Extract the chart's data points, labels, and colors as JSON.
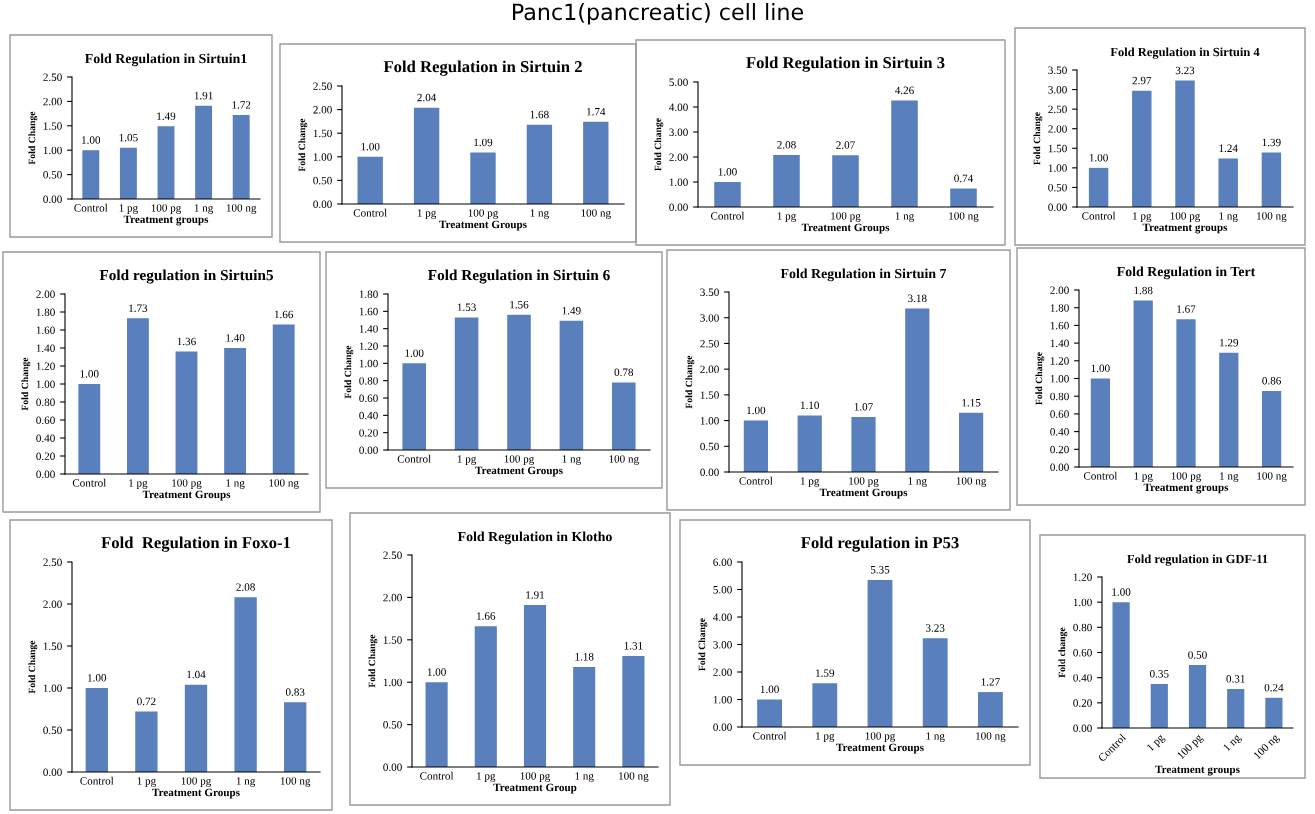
{
  "chart_data": [
    {
      "type": "other",
      "title": "Panc1(pancreatic) cell line"
    },
    {
      "type": "bar",
      "title": "Fold Regulation in Sirtuin1",
      "xlabel": "Treatment groups",
      "ylabel": "Fold Change",
      "categories": [
        "Control",
        "1 pg",
        "100 pg",
        "1 ng",
        "100 ng"
      ],
      "values": [
        1.0,
        1.05,
        1.49,
        1.91,
        1.72
      ],
      "value_labels": [
        "1.00",
        "1.05",
        "1.49",
        "1.91",
        "1.72"
      ],
      "color": "#5a7fbd",
      "ylim": [
        0,
        2.5
      ],
      "yticks": [
        {
          "value": 0,
          "label": "0.00"
        },
        {
          "value": 0.5,
          "label": "0.50"
        },
        {
          "value": 1,
          "label": "1.00"
        },
        {
          "value": 1.5,
          "label": "1.50"
        },
        {
          "value": 2,
          "label": "2.00"
        },
        {
          "value": 2.5,
          "label": "2.50"
        }
      ],
      "grid": false,
      "legend": false
    },
    {
      "type": "bar",
      "title": "Fold Regulation in Sirtuin 2",
      "xlabel": "Treatment Groups",
      "ylabel": "Fold Change",
      "categories": [
        "Control",
        "1 pg",
        "100 pg",
        "1 ng",
        "100 ng"
      ],
      "values": [
        1.0,
        2.04,
        1.09,
        1.68,
        1.74
      ],
      "value_labels": [
        "1.00",
        "2.04",
        "1.09",
        "1.68",
        "1.74"
      ],
      "color": "#5a7fbd",
      "ylim": [
        0,
        2.5
      ],
      "yticks": [
        {
          "value": 0,
          "label": "0.00"
        },
        {
          "value": 0.5,
          "label": "0.50"
        },
        {
          "value": 1,
          "label": "1.00"
        },
        {
          "value": 1.5,
          "label": "1.50"
        },
        {
          "value": 2,
          "label": "2.00"
        },
        {
          "value": 2.5,
          "label": "2.50"
        }
      ],
      "grid": false,
      "legend": false
    },
    {
      "type": "bar",
      "title": "Fold Regulation in Sirtuin 3",
      "xlabel": "Treatment Groups",
      "ylabel": "Fold Change",
      "categories": [
        "Control",
        "1 pg",
        "100 pg",
        "1 ng",
        "100 ng"
      ],
      "values": [
        1.0,
        2.08,
        2.07,
        4.26,
        0.74
      ],
      "value_labels": [
        "1.00",
        "2.08",
        "2.07",
        "4.26",
        "0.74"
      ],
      "color": "#5a7fbd",
      "ylim": [
        0,
        5
      ],
      "yticks": [
        {
          "value": 0,
          "label": "0.00"
        },
        {
          "value": 1,
          "label": "1.00"
        },
        {
          "value": 2,
          "label": "2.00"
        },
        {
          "value": 3,
          "label": "3.00"
        },
        {
          "value": 4,
          "label": "4.00"
        },
        {
          "value": 5,
          "label": "5.00"
        }
      ],
      "grid": false,
      "legend": false
    },
    {
      "type": "bar",
      "title": "Fold Regulation in Sirtuin 4",
      "xlabel": "Treatment groups",
      "ylabel": "Fold Change",
      "categories": [
        "Control",
        "1 pg",
        "100 pg",
        "1 ng",
        "100 ng"
      ],
      "values": [
        1.0,
        2.97,
        3.23,
        1.24,
        1.39
      ],
      "value_labels": [
        "1.00",
        "2.97",
        "3.23",
        "1.24",
        "1.39"
      ],
      "color": "#5a7fbd",
      "ylim": [
        0,
        3.5
      ],
      "yticks": [
        {
          "value": 0,
          "label": "0.00"
        },
        {
          "value": 0.5,
          "label": "0.50"
        },
        {
          "value": 1,
          "label": "1.00"
        },
        {
          "value": 1.5,
          "label": "1.50"
        },
        {
          "value": 2,
          "label": "2.00"
        },
        {
          "value": 2.5,
          "label": "2.50"
        },
        {
          "value": 3,
          "label": "3.00"
        },
        {
          "value": 3.5,
          "label": "3.50"
        }
      ],
      "grid": false,
      "legend": false
    },
    {
      "type": "bar",
      "title": "Fold regulation in Sirtuin5",
      "xlabel": "Treatment Groups",
      "ylabel": "Fold Change",
      "categories": [
        "Control",
        "1 pg",
        "100 pg",
        "1 ng",
        "100 ng"
      ],
      "values": [
        1.0,
        1.73,
        1.36,
        1.4,
        1.66
      ],
      "value_labels": [
        "1.00",
        "1.73",
        "1.36",
        "1.40",
        "1.66"
      ],
      "color": "#5a7fbd",
      "ylim": [
        0,
        2
      ],
      "yticks": [
        {
          "value": 0,
          "label": "0.00"
        },
        {
          "value": 0.2,
          "label": "0.20"
        },
        {
          "value": 0.4,
          "label": "0.40"
        },
        {
          "value": 0.6,
          "label": "0.60"
        },
        {
          "value": 0.8,
          "label": "0.80"
        },
        {
          "value": 1,
          "label": "1.00"
        },
        {
          "value": 1.2,
          "label": "1.20"
        },
        {
          "value": 1.4,
          "label": "1.40"
        },
        {
          "value": 1.6,
          "label": "1.60"
        },
        {
          "value": 1.8,
          "label": "1.80"
        },
        {
          "value": 2,
          "label": "2.00"
        }
      ],
      "grid": false,
      "legend": false
    },
    {
      "type": "bar",
      "title": "Fold Regulation in Sirtuin 6",
      "xlabel": "Treatment Groups",
      "ylabel": "Fold Change",
      "categories": [
        "Control",
        "1 pg",
        "100 pg",
        "1 ng",
        "100 ng"
      ],
      "values": [
        1.0,
        1.53,
        1.56,
        1.49,
        0.78
      ],
      "value_labels": [
        "1.00",
        "1.53",
        "1.56",
        "1.49",
        "0.78"
      ],
      "color": "#5a7fbd",
      "ylim": [
        0,
        1.8
      ],
      "yticks": [
        {
          "value": 0,
          "label": "0.00"
        },
        {
          "value": 0.2,
          "label": "0.20"
        },
        {
          "value": 0.4,
          "label": "0.40"
        },
        {
          "value": 0.6,
          "label": "0.60"
        },
        {
          "value": 0.8,
          "label": "0.80"
        },
        {
          "value": 1,
          "label": "1.00"
        },
        {
          "value": 1.2,
          "label": "1.20"
        },
        {
          "value": 1.4,
          "label": "1.40"
        },
        {
          "value": 1.6,
          "label": "1.60"
        },
        {
          "value": 1.8,
          "label": "1.80"
        }
      ],
      "grid": false,
      "legend": false
    },
    {
      "type": "bar",
      "title": "Fold Regulation in Sirtuin 7",
      "xlabel": "Treatment Groups",
      "ylabel": "Fold Change",
      "categories": [
        "Control",
        "1 pg",
        "100 pg",
        "1 ng",
        "100 ng"
      ],
      "values": [
        1.0,
        1.1,
        1.07,
        3.18,
        1.15
      ],
      "value_labels": [
        "1.00",
        "1.10",
        "1.07",
        "3.18",
        "1.15"
      ],
      "color": "#5a7fbd",
      "ylim": [
        0,
        3.5
      ],
      "yticks": [
        {
          "value": 0,
          "label": "0.00"
        },
        {
          "value": 0.5,
          "label": "0.50"
        },
        {
          "value": 1,
          "label": "1.00"
        },
        {
          "value": 1.5,
          "label": "1.50"
        },
        {
          "value": 2,
          "label": "2.00"
        },
        {
          "value": 2.5,
          "label": "2.50"
        },
        {
          "value": 3,
          "label": "3.00"
        },
        {
          "value": 3.5,
          "label": "3.50"
        }
      ],
      "grid": false,
      "legend": false
    },
    {
      "type": "bar",
      "title": "Fold Regulation in Tert",
      "xlabel": "Treatment groups",
      "ylabel": "Fold Change",
      "categories": [
        "Control",
        "1 pg",
        "100 pg",
        "1 ng",
        "100 ng"
      ],
      "values": [
        1.0,
        1.88,
        1.67,
        1.29,
        0.86
      ],
      "value_labels": [
        "1.00",
        "1.88",
        "1.67",
        "1.29",
        "0.86"
      ],
      "color": "#5a7fbd",
      "ylim": [
        0,
        2
      ],
      "yticks": [
        {
          "value": 0,
          "label": "0.00"
        },
        {
          "value": 0.2,
          "label": "0.20"
        },
        {
          "value": 0.4,
          "label": "0.40"
        },
        {
          "value": 0.6,
          "label": "0.60"
        },
        {
          "value": 0.8,
          "label": "0.80"
        },
        {
          "value": 1,
          "label": "1.00"
        },
        {
          "value": 1.2,
          "label": "1.20"
        },
        {
          "value": 1.4,
          "label": "1.40"
        },
        {
          "value": 1.6,
          "label": "1.60"
        },
        {
          "value": 1.8,
          "label": "1.80"
        },
        {
          "value": 2,
          "label": "2.00"
        }
      ],
      "grid": false,
      "legend": false
    },
    {
      "type": "bar",
      "title": "Fold  Regulation in Foxo-1",
      "xlabel": "Treatment Groups",
      "ylabel": "Fold Change",
      "categories": [
        "Control",
        "1 pg",
        "100 pg",
        "1 ng",
        "100 ng"
      ],
      "values": [
        1.0,
        0.72,
        1.04,
        2.08,
        0.83
      ],
      "value_labels": [
        "1.00",
        "0.72",
        "1.04",
        "2.08",
        "0.83"
      ],
      "color": "#5a7fbd",
      "ylim": [
        0,
        2.5
      ],
      "yticks": [
        {
          "value": 0,
          "label": "0.00"
        },
        {
          "value": 0.5,
          "label": "0.50"
        },
        {
          "value": 1,
          "label": "1.00"
        },
        {
          "value": 1.5,
          "label": "1.50"
        },
        {
          "value": 2,
          "label": "2.00"
        },
        {
          "value": 2.5,
          "label": "2.50"
        }
      ],
      "grid": false,
      "legend": false
    },
    {
      "type": "bar",
      "title": "Fold Regulation in Klotho",
      "xlabel": "Treatment Group",
      "ylabel": "Fold Change",
      "categories": [
        "Control",
        "1 pg",
        "100 pg",
        "1 ng",
        "100 ng"
      ],
      "values": [
        1.0,
        1.66,
        1.91,
        1.18,
        1.31
      ],
      "value_labels": [
        "1.00",
        "1.66",
        "1.91",
        "1.18",
        "1.31"
      ],
      "color": "#5a7fbd",
      "ylim": [
        0,
        2.5
      ],
      "yticks": [
        {
          "value": 0,
          "label": "0.00"
        },
        {
          "value": 0.5,
          "label": "0.50"
        },
        {
          "value": 1,
          "label": "1.00"
        },
        {
          "value": 1.5,
          "label": "1.50"
        },
        {
          "value": 2,
          "label": "2.00"
        },
        {
          "value": 2.5,
          "label": "2.50"
        }
      ],
      "grid": false,
      "legend": false
    },
    {
      "type": "bar",
      "title": "Fold regulation in P53",
      "xlabel": "Treatment Groups",
      "ylabel": "Fold Change",
      "categories": [
        "Control",
        "1 pg",
        "100 pg",
        "1 ng",
        "100 ng"
      ],
      "values": [
        1.0,
        1.59,
        5.35,
        3.23,
        1.27
      ],
      "value_labels": [
        "1.00",
        "1.59",
        "5.35",
        "3.23",
        "1.27"
      ],
      "color": "#5a7fbd",
      "ylim": [
        0,
        6
      ],
      "yticks": [
        {
          "value": 0,
          "label": "0.00"
        },
        {
          "value": 1,
          "label": "1.00"
        },
        {
          "value": 2,
          "label": "2.00"
        },
        {
          "value": 3,
          "label": "3.00"
        },
        {
          "value": 4,
          "label": "4.00"
        },
        {
          "value": 5,
          "label": "5.00"
        },
        {
          "value": 6,
          "label": "6.00"
        }
      ],
      "grid": false,
      "legend": false
    },
    {
      "type": "bar",
      "title": "Fold regulation in GDF-11",
      "xlabel": "Treatment groups",
      "ylabel": "Fold change",
      "categories": [
        "Control",
        "1 pg",
        "100 pg",
        "1 ng",
        "100 ng"
      ],
      "values": [
        1.0,
        0.35,
        0.5,
        0.31,
        0.24
      ],
      "value_labels": [
        "1.00",
        "0.35",
        "0.50",
        "0.31",
        "0.24"
      ],
      "color": "#5a7fbd",
      "ylim": [
        0,
        1.2
      ],
      "yticks": [
        {
          "value": 0,
          "label": "0.00"
        },
        {
          "value": 0.2,
          "label": "0.20"
        },
        {
          "value": 0.4,
          "label": "0.40"
        },
        {
          "value": 0.6,
          "label": "0.60"
        },
        {
          "value": 0.8,
          "label": "0.80"
        },
        {
          "value": 1,
          "label": "1.00"
        },
        {
          "value": 1.2,
          "label": "1.20"
        }
      ],
      "grid": false,
      "legend": false
    }
  ]
}
